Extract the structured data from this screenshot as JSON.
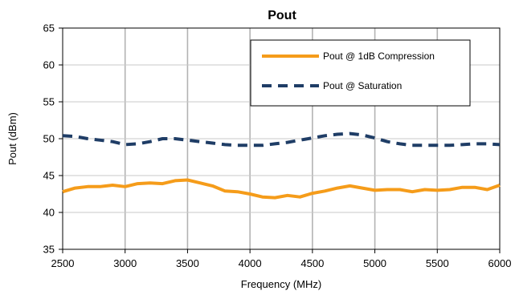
{
  "chart_data": {
    "type": "line",
    "title": "Pout",
    "xlabel": "Frequency (MHz)",
    "ylabel": "Pout (dBm)",
    "xlim": [
      2500,
      6000
    ],
    "ylim": [
      35,
      65
    ],
    "xticks": [
      2500,
      3000,
      3500,
      4000,
      4500,
      5000,
      5500,
      6000
    ],
    "yticks": [
      35,
      40,
      45,
      50,
      55,
      60,
      65
    ],
    "grid": {
      "vertical": true,
      "horizontal": true
    },
    "legend_position": "top-right",
    "series": [
      {
        "name": "Pout @ 1dB Compression",
        "color": "#f59c1a",
        "style": "solid",
        "x": [
          2500,
          2600,
          2700,
          2800,
          2900,
          3000,
          3100,
          3200,
          3300,
          3400,
          3500,
          3600,
          3700,
          3800,
          3900,
          4000,
          4100,
          4200,
          4300,
          4400,
          4500,
          4600,
          4700,
          4800,
          4900,
          5000,
          5100,
          5200,
          5300,
          5400,
          5500,
          5600,
          5700,
          5800,
          5900,
          6000
        ],
        "y": [
          42.8,
          43.3,
          43.5,
          43.5,
          43.7,
          43.5,
          43.9,
          44.0,
          43.9,
          44.3,
          44.4,
          44.0,
          43.6,
          42.9,
          42.8,
          42.5,
          42.1,
          42.0,
          42.3,
          42.1,
          42.6,
          42.9,
          43.3,
          43.6,
          43.3,
          43.0,
          43.1,
          43.1,
          42.8,
          43.1,
          43.0,
          43.1,
          43.4,
          43.4,
          43.1,
          43.7
        ]
      },
      {
        "name": "Pout @ Saturation",
        "color": "#1f3d66",
        "style": "dashed",
        "x": [
          2500,
          2600,
          2700,
          2800,
          2900,
          3000,
          3100,
          3200,
          3300,
          3400,
          3500,
          3600,
          3700,
          3800,
          3900,
          4000,
          4100,
          4200,
          4300,
          4400,
          4500,
          4600,
          4700,
          4800,
          4900,
          5000,
          5100,
          5200,
          5300,
          5400,
          5500,
          5600,
          5700,
          5800,
          5900,
          6000
        ],
        "y": [
          50.4,
          50.3,
          50.0,
          49.8,
          49.6,
          49.2,
          49.3,
          49.6,
          50.0,
          50.0,
          49.8,
          49.6,
          49.4,
          49.2,
          49.1,
          49.1,
          49.1,
          49.3,
          49.5,
          49.8,
          50.1,
          50.4,
          50.6,
          50.7,
          50.5,
          50.1,
          49.6,
          49.3,
          49.1,
          49.1,
          49.1,
          49.1,
          49.2,
          49.3,
          49.3,
          49.2
        ]
      }
    ]
  }
}
